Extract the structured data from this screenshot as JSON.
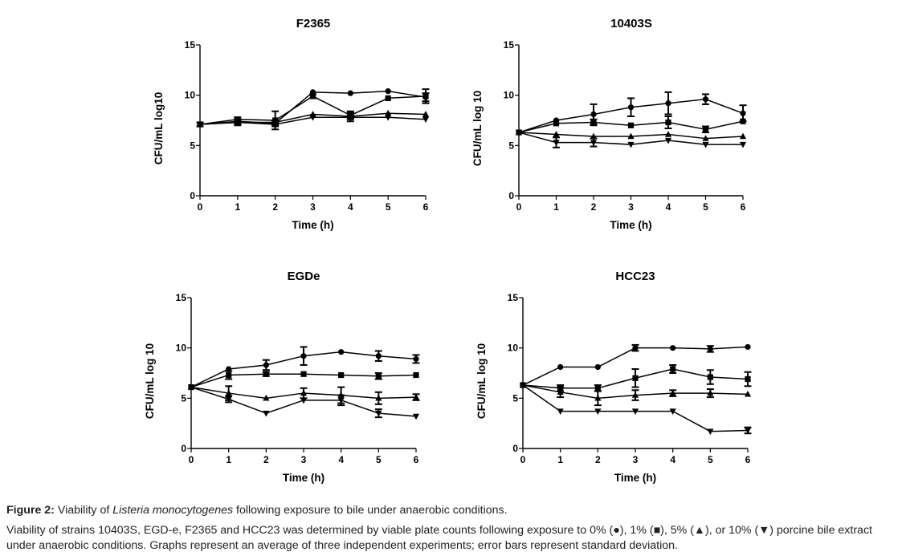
{
  "chart_data": [
    {
      "type": "line",
      "title": "F2365",
      "xlabel": "Time (h)",
      "ylabel": "CFU/mL log10",
      "x": [
        0,
        1,
        2,
        3,
        4,
        5,
        6
      ],
      "xticks": [
        "0",
        "1",
        "2",
        "3",
        "4",
        "5",
        "6"
      ],
      "yticks": [
        "0",
        "5",
        "10",
        "15"
      ],
      "xlim": [
        0,
        6
      ],
      "ylim": [
        0,
        15
      ],
      "grid": false,
      "series": [
        {
          "name": "0%",
          "marker": "circle",
          "values": [
            7.1,
            7.4,
            7.2,
            10.3,
            10.2,
            10.4,
            9.8
          ],
          "err": [
            0.2,
            0.2,
            0.2,
            0.1,
            0.1,
            0.1,
            0.4
          ]
        },
        {
          "name": "1%",
          "marker": "square",
          "values": [
            7.1,
            7.6,
            7.5,
            9.9,
            8.0,
            9.7,
            9.9
          ],
          "err": [
            0.2,
            0.2,
            0.9,
            0.2,
            0.3,
            0.1,
            0.7
          ]
        },
        {
          "name": "5%",
          "marker": "triangle-up",
          "values": [
            7.1,
            7.3,
            7.3,
            8.1,
            7.9,
            8.2,
            8.1
          ],
          "err": [
            0.2,
            0.3,
            0.2,
            0.1,
            0.5,
            0.1,
            0.1
          ]
        },
        {
          "name": "10%",
          "marker": "triangle-down",
          "values": [
            7.1,
            7.3,
            7.1,
            7.8,
            7.8,
            7.8,
            7.6
          ],
          "err": [
            0.2,
            0.2,
            0.2,
            0.1,
            0.2,
            0.1,
            0.1
          ]
        }
      ]
    },
    {
      "type": "line",
      "title": "10403S",
      "xlabel": "Time (h)",
      "ylabel": "CFU/mL log 10",
      "x": [
        0,
        1,
        2,
        3,
        4,
        5,
        6
      ],
      "xticks": [
        "0",
        "1",
        "2",
        "3",
        "4",
        "5",
        "6"
      ],
      "yticks": [
        "0",
        "5",
        "10",
        "15"
      ],
      "xlim": [
        0,
        6
      ],
      "ylim": [
        0,
        15
      ],
      "grid": false,
      "series": [
        {
          "name": "0%",
          "marker": "circle",
          "values": [
            6.3,
            7.5,
            8.1,
            8.8,
            9.2,
            9.6,
            8.2
          ],
          "err": [
            0.1,
            0.1,
            1.0,
            0.9,
            1.1,
            0.5,
            0.8
          ]
        },
        {
          "name": "1%",
          "marker": "square",
          "values": [
            6.3,
            7.2,
            7.3,
            7.0,
            7.3,
            6.6,
            7.4
          ],
          "err": [
            0.1,
            0.1,
            0.3,
            0.1,
            0.6,
            0.3,
            0.1
          ]
        },
        {
          "name": "5%",
          "marker": "triangle-up",
          "values": [
            6.3,
            6.1,
            5.9,
            5.9,
            6.1,
            5.7,
            5.9
          ],
          "err": [
            0.1,
            0.1,
            0.1,
            0.1,
            0.1,
            0.1,
            0.1
          ]
        },
        {
          "name": "10%",
          "marker": "triangle-down",
          "values": [
            6.3,
            5.3,
            5.3,
            5.1,
            5.5,
            5.1,
            5.1
          ],
          "err": [
            0.1,
            0.5,
            0.4,
            0.1,
            0.1,
            0.1,
            0.1
          ]
        }
      ]
    },
    {
      "type": "line",
      "title": "EGDe",
      "xlabel": "Time (h)",
      "ylabel": "CFU/mL log 10",
      "x": [
        0,
        1,
        2,
        3,
        4,
        5,
        6
      ],
      "xticks": [
        "0",
        "1",
        "2",
        "3",
        "4",
        "5",
        "6"
      ],
      "yticks": [
        "0",
        "5",
        "10",
        "15"
      ],
      "xlim": [
        0,
        6
      ],
      "ylim": [
        0,
        15
      ],
      "grid": false,
      "series": [
        {
          "name": "0%",
          "marker": "circle",
          "values": [
            6.1,
            7.9,
            8.3,
            9.2,
            9.6,
            9.2,
            8.9
          ],
          "err": [
            0.1,
            0.1,
            0.5,
            0.9,
            0.1,
            0.5,
            0.4
          ]
        },
        {
          "name": "1%",
          "marker": "square",
          "values": [
            6.1,
            7.3,
            7.4,
            7.4,
            7.3,
            7.2,
            7.3
          ],
          "err": [
            0.1,
            0.4,
            0.2,
            0.1,
            0.1,
            0.3,
            0.1
          ]
        },
        {
          "name": "5%",
          "marker": "triangle-up",
          "values": [
            6.1,
            5.5,
            5.0,
            5.5,
            5.3,
            5.0,
            5.1
          ],
          "err": [
            0.1,
            0.7,
            0.1,
            0.5,
            0.8,
            0.6,
            0.3
          ]
        },
        {
          "name": "10%",
          "marker": "triangle-down",
          "values": [
            6.1,
            4.9,
            3.5,
            4.8,
            4.8,
            3.5,
            3.2
          ],
          "err": [
            0.1,
            0.3,
            0.1,
            0.1,
            0.5,
            0.4,
            0.1
          ]
        }
      ]
    },
    {
      "type": "line",
      "title": "HCC23",
      "xlabel": "Time (h)",
      "ylabel": "CFU/mL log 10",
      "x": [
        0,
        1,
        2,
        3,
        4,
        5,
        6
      ],
      "xticks": [
        "0",
        "1",
        "2",
        "3",
        "4",
        "5",
        "6"
      ],
      "yticks": [
        "0",
        "5",
        "10",
        "15"
      ],
      "xlim": [
        0,
        6
      ],
      "ylim": [
        0,
        15
      ],
      "grid": false,
      "series": [
        {
          "name": "0%",
          "marker": "circle",
          "values": [
            6.3,
            8.1,
            8.1,
            10.0,
            10.0,
            9.9,
            10.1
          ],
          "err": [
            0.1,
            0.1,
            0.1,
            0.3,
            0.1,
            0.3,
            0.1
          ]
        },
        {
          "name": "1%",
          "marker": "square",
          "values": [
            6.3,
            6.0,
            6.0,
            7.0,
            7.9,
            7.1,
            6.9
          ],
          "err": [
            0.1,
            0.3,
            0.3,
            0.9,
            0.4,
            0.7,
            0.7
          ]
        },
        {
          "name": "5%",
          "marker": "triangle-up",
          "values": [
            6.3,
            5.6,
            5.0,
            5.3,
            5.5,
            5.5,
            5.4
          ],
          "err": [
            0.1,
            0.5,
            0.7,
            0.5,
            0.3,
            0.4,
            0.1
          ]
        },
        {
          "name": "10%",
          "marker": "triangle-down",
          "values": [
            6.3,
            3.7,
            3.7,
            3.7,
            3.7,
            1.7,
            1.8
          ],
          "err": [
            0.1,
            0.1,
            0.1,
            0.1,
            0.1,
            0.1,
            0.3
          ]
        }
      ]
    }
  ],
  "caption": {
    "label": "Figure 2:",
    "title_pre": "Viability of ",
    "title_italic": "Listeria monocytogenes",
    "title_post": " following exposure to bile under anaerobic conditions.",
    "body": "Viability of strains 10403S, EGD-e, F2365 and HCC23 was determined by viable plate counts following exposure to 0% (●), 1% (■), 5% (▲), or 10% (▼) porcine bile extract under anaerobic conditions. Graphs represent an average of three independent experiments; error bars represent standard deviation."
  }
}
